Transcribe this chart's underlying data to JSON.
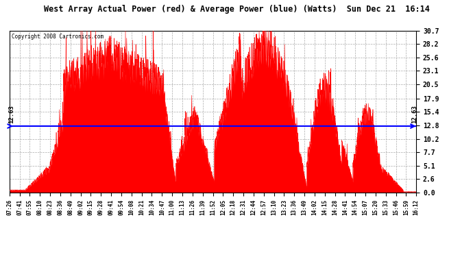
{
  "title": "West Array Actual Power (red) & Average Power (blue) (Watts)  Sun Dec 21  16:14",
  "copyright": "Copyright 2008 Cartronics.com",
  "avg_power": 12.63,
  "ymax": 30.7,
  "ymin": 0.0,
  "yticks": [
    0.0,
    2.6,
    5.1,
    7.7,
    10.2,
    12.8,
    15.4,
    17.9,
    20.5,
    23.1,
    25.6,
    28.2,
    30.7
  ],
  "background_color": "#ffffff",
  "plot_bg_color": "#ffffff",
  "red_color": "#ff0000",
  "blue_color": "#0000ff",
  "grid_color": "#aaaaaa",
  "xtick_labels": [
    "07:26",
    "07:41",
    "07:55",
    "08:10",
    "08:23",
    "08:36",
    "08:49",
    "09:02",
    "09:15",
    "09:28",
    "09:41",
    "09:54",
    "10:08",
    "10:21",
    "10:34",
    "10:47",
    "11:00",
    "11:13",
    "11:26",
    "11:39",
    "11:52",
    "12:05",
    "12:18",
    "12:31",
    "12:44",
    "12:57",
    "13:10",
    "13:23",
    "13:36",
    "13:49",
    "14:02",
    "14:15",
    "14:28",
    "14:41",
    "14:54",
    "15:07",
    "15:20",
    "15:33",
    "15:46",
    "15:59",
    "16:12"
  ]
}
